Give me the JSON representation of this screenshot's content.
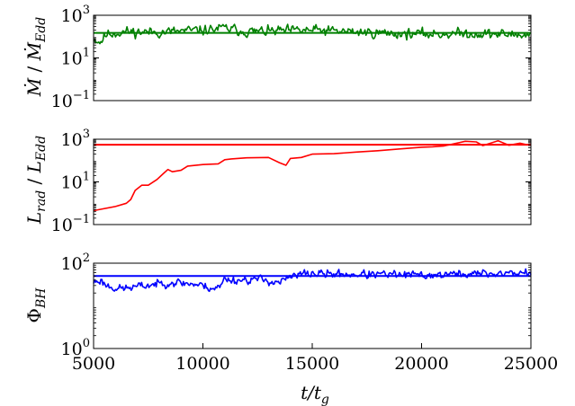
{
  "chart_data": [
    {
      "type": "line",
      "ylabel": "Ṁ / Ṁ_Edd",
      "yscale": "log",
      "ylim_exp": [
        -1,
        3
      ],
      "yticks": [
        {
          "base": "10",
          "exp": "−1"
        },
        {
          "base": "10",
          "exp": "1"
        },
        {
          "base": "10",
          "exp": "3"
        }
      ],
      "xlim": [
        5000,
        25000
      ],
      "color": "#008000",
      "reference_level": 150,
      "series": {
        "kind": "noisy",
        "x_start": 5000,
        "x_end": 25000,
        "n": 420,
        "seed": 11,
        "trend_x": [
          5000,
          5300,
          5600,
          6500,
          8000,
          10000,
          11000,
          12000,
          15000,
          18000,
          20000,
          22000,
          25000
        ],
        "trend_y": [
          80,
          55,
          130,
          170,
          160,
          200,
          250,
          170,
          200,
          150,
          130,
          140,
          120
        ],
        "noise_dex": 0.17
      }
    },
    {
      "type": "line",
      "ylabel": "L_rad / L_Edd",
      "yscale": "log",
      "ylim_exp": [
        -1,
        3
      ],
      "yticks": [
        {
          "base": "10",
          "exp": "−1"
        },
        {
          "base": "10",
          "exp": "1"
        },
        {
          "base": "10",
          "exp": "3"
        }
      ],
      "xlim": [
        5000,
        25000
      ],
      "color": "#ff0000",
      "reference_level": 550,
      "series": {
        "kind": "smooth",
        "x": [
          5000,
          6000,
          6500,
          6700,
          6900,
          7200,
          7500,
          7900,
          8200,
          8400,
          8600,
          9000,
          9300,
          10000,
          10700,
          11000,
          11300,
          12000,
          13000,
          13500,
          13800,
          14000,
          14500,
          15000,
          16000,
          17000,
          18000,
          19000,
          20000,
          20500,
          21000,
          22000,
          22500,
          22800,
          23500,
          24000,
          24500,
          24800,
          25000
        ],
        "y": [
          0.45,
          0.7,
          1.0,
          1.5,
          4.0,
          7.0,
          7.0,
          13,
          25,
          38,
          30,
          35,
          55,
          65,
          70,
          110,
          120,
          135,
          140,
          80,
          60,
          125,
          140,
          200,
          210,
          250,
          290,
          350,
          420,
          440,
          480,
          800,
          750,
          500,
          850,
          520,
          650,
          560,
          600
        ]
      }
    },
    {
      "type": "line",
      "ylabel": "Φ_BH",
      "yscale": "log",
      "ylim_exp": [
        0,
        2
      ],
      "yticks": [
        {
          "base": "10",
          "exp": "0"
        },
        {
          "base": "10",
          "exp": "2"
        }
      ],
      "xticks": [
        5000,
        10000,
        15000,
        20000,
        25000
      ],
      "xlim": [
        5000,
        25000
      ],
      "xlabel": "t/t_g",
      "color": "#0000ff",
      "reference_level": 50,
      "series": {
        "kind": "noisy",
        "x_start": 5000,
        "x_end": 25000,
        "n": 420,
        "seed": 23,
        "trend_x": [
          5000,
          5300,
          5600,
          6200,
          7000,
          8500,
          9500,
          10500,
          10800,
          11000,
          11400,
          12500,
          13500,
          14000,
          14700,
          15500,
          18000,
          20000,
          22000,
          24000,
          25000
        ],
        "trend_y": [
          36,
          40,
          30,
          25,
          28,
          36,
          33,
          26,
          28,
          44,
          40,
          42,
          36,
          46,
          58,
          56,
          54,
          52,
          56,
          58,
          60
        ],
        "noise_dex": 0.07
      }
    }
  ]
}
